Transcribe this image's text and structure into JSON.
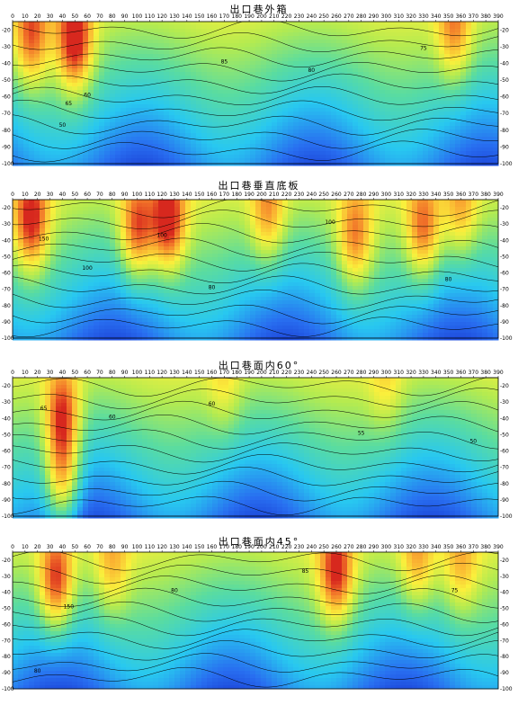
{
  "chart_data": [
    {
      "type": "heatmap",
      "title": "出口巷外箱",
      "x_ticks": [
        0,
        10,
        20,
        30,
        40,
        50,
        60,
        70,
        80,
        90,
        100,
        110,
        120,
        130,
        140,
        150,
        160,
        170,
        180,
        190,
        200,
        210,
        220,
        230,
        240,
        250,
        260,
        270,
        280,
        290,
        300,
        310,
        320,
        330,
        340,
        350,
        360,
        370,
        380,
        390
      ],
      "y_ticks": [
        -20,
        -30,
        -40,
        -50,
        -60,
        -70,
        -80,
        -90,
        -100
      ],
      "xlim": [
        0,
        390
      ],
      "ylim": [
        -100,
        -15
      ],
      "contour_labels": [
        {
          "x": 60,
          "y": -60,
          "text": "60"
        },
        {
          "x": 170,
          "y": -40,
          "text": "85"
        },
        {
          "x": 240,
          "y": -45,
          "text": "80"
        },
        {
          "x": 330,
          "y": -32,
          "text": "75"
        },
        {
          "x": 45,
          "y": -65,
          "text": "65"
        },
        {
          "x": 40,
          "y": -78,
          "text": "50"
        }
      ],
      "hot_spots": [
        {
          "x": 15,
          "y": -25,
          "level": 0.85
        },
        {
          "x": 50,
          "y": -28,
          "level": 1.0
        },
        {
          "x": 355,
          "y": -22,
          "level": 0.8
        }
      ]
    },
    {
      "type": "heatmap",
      "title": "出口巷垂直底板",
      "x_ticks": [
        0,
        10,
        20,
        30,
        40,
        50,
        60,
        70,
        80,
        90,
        100,
        110,
        120,
        130,
        140,
        150,
        160,
        170,
        180,
        190,
        200,
        210,
        220,
        230,
        240,
        250,
        260,
        270,
        280,
        290,
        300,
        310,
        320,
        330,
        340,
        350,
        360,
        370,
        380,
        390
      ],
      "y_ticks": [
        -20,
        -30,
        -40,
        -50,
        -60,
        -70,
        -80,
        -90,
        -100
      ],
      "xlim": [
        0,
        390
      ],
      "ylim": [
        -100,
        -15
      ],
      "contour_labels": [
        {
          "x": 25,
          "y": -40,
          "text": "150"
        },
        {
          "x": 60,
          "y": -58,
          "text": "100"
        },
        {
          "x": 120,
          "y": -38,
          "text": "100"
        },
        {
          "x": 160,
          "y": -70,
          "text": "80"
        },
        {
          "x": 255,
          "y": -30,
          "text": "100"
        },
        {
          "x": 350,
          "y": -65,
          "text": "80"
        }
      ],
      "hot_spots": [
        {
          "x": 15,
          "y": -30,
          "level": 0.95
        },
        {
          "x": 100,
          "y": -35,
          "level": 0.95
        },
        {
          "x": 125,
          "y": -30,
          "level": 1.0
        },
        {
          "x": 205,
          "y": -25,
          "level": 0.8
        },
        {
          "x": 275,
          "y": -40,
          "level": 0.85
        },
        {
          "x": 330,
          "y": -35,
          "level": 0.9
        },
        {
          "x": 360,
          "y": -22,
          "level": 0.75
        }
      ]
    },
    {
      "type": "heatmap",
      "title": "出口巷面内60°",
      "x_ticks": [
        0,
        10,
        20,
        30,
        40,
        50,
        60,
        70,
        80,
        90,
        100,
        110,
        120,
        130,
        140,
        150,
        160,
        170,
        180,
        190,
        200,
        210,
        220,
        230,
        240,
        250,
        260,
        270,
        280,
        290,
        300,
        310,
        320,
        330,
        340,
        350,
        360,
        370,
        380,
        390
      ],
      "y_ticks": [
        -20,
        -30,
        -40,
        -50,
        -60,
        -70,
        -80,
        -90,
        -100
      ],
      "xlim": [
        0,
        390
      ],
      "ylim": [
        -100,
        -15
      ],
      "contour_labels": [
        {
          "x": 25,
          "y": -35,
          "text": "65"
        },
        {
          "x": 80,
          "y": -40,
          "text": "60"
        },
        {
          "x": 160,
          "y": -32,
          "text": "60"
        },
        {
          "x": 280,
          "y": -50,
          "text": "55"
        },
        {
          "x": 370,
          "y": -55,
          "text": "50"
        }
      ],
      "hot_spots": [
        {
          "x": 40,
          "y": -40,
          "level": 1.0
        },
        {
          "x": 40,
          "y": -80,
          "level": 0.95
        },
        {
          "x": 170,
          "y": -22,
          "level": 0.6
        },
        {
          "x": 300,
          "y": -22,
          "level": 0.6
        }
      ]
    },
    {
      "type": "heatmap",
      "title": "出口巷面内45°",
      "x_ticks": [
        0,
        10,
        20,
        30,
        40,
        50,
        60,
        70,
        80,
        90,
        100,
        110,
        120,
        130,
        140,
        150,
        160,
        170,
        180,
        190,
        200,
        210,
        220,
        230,
        240,
        250,
        260,
        270,
        280,
        290,
        300,
        310,
        320,
        330,
        340,
        350,
        360,
        370,
        380,
        390
      ],
      "y_ticks": [
        -20,
        -30,
        -40,
        -50,
        -60,
        -70,
        -80,
        -90,
        -100
      ],
      "xlim": [
        0,
        390
      ],
      "ylim": [
        -100,
        -15
      ],
      "contour_labels": [
        {
          "x": 20,
          "y": -90,
          "text": "80"
        },
        {
          "x": 45,
          "y": -50,
          "text": "150"
        },
        {
          "x": 130,
          "y": -40,
          "text": "80"
        },
        {
          "x": 235,
          "y": -28,
          "text": "85"
        },
        {
          "x": 355,
          "y": -40,
          "text": "75"
        }
      ],
      "hot_spots": [
        {
          "x": 35,
          "y": -35,
          "level": 1.0
        },
        {
          "x": 80,
          "y": -25,
          "level": 0.7
        },
        {
          "x": 260,
          "y": -30,
          "level": 0.95
        },
        {
          "x": 325,
          "y": -22,
          "level": 0.75
        },
        {
          "x": 360,
          "y": -25,
          "level": 0.7
        }
      ]
    }
  ]
}
